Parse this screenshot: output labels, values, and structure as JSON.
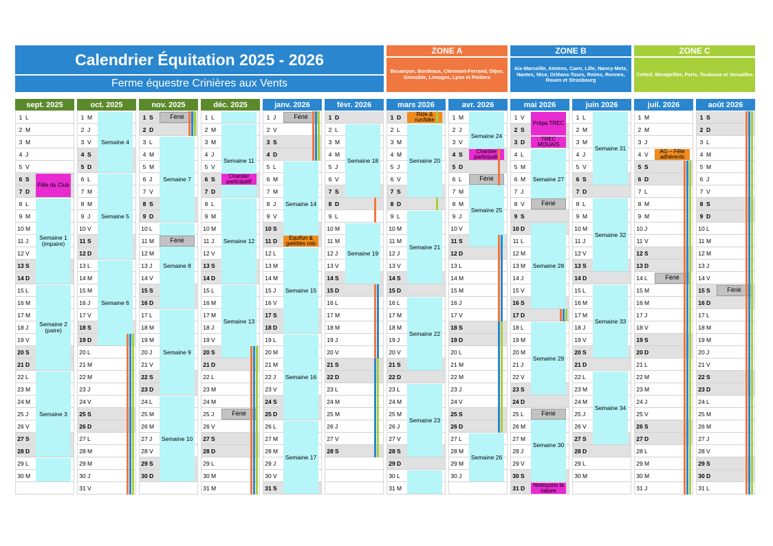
{
  "title": "Calendrier Équitation 2025 - 2026",
  "subtitle": "Ferme équestre Crinières aux Vents",
  "colors": {
    "title_bg": "#2a86cf",
    "zone_a": "#f0773f",
    "zone_b": "#2a86cf",
    "zone_c": "#a7cf3a",
    "month_green": "#5b8a2c",
    "month_blue": "#2a86cf",
    "week_fill": "#b6f5f8",
    "ferie": "#c2c2c2",
    "event_pink": "#e82bd0",
    "event_orange": "#ef8b1e"
  },
  "zones": [
    {
      "name": "ZONE A",
      "cities": "Besançon, Bordeaux, Clermont-Ferrand, Dijon, Grenoble, Limoges, Lyon et Poitiers",
      "color": "#f0773f"
    },
    {
      "name": "ZONE B",
      "cities": "Aix-Marseille, Amiens, Caen, Lille, Nancy-Metz, Nantes, Nice, Orléans-Tours, Reims, Rennes, Rouen et Strasbourg",
      "color": "#2a86cf"
    },
    {
      "name": "ZONE C",
      "cities": "Créteil, Montpellier, Paris, Toulouse et Versailles",
      "color": "#a7cf3a"
    }
  ],
  "months": [
    {
      "name": "sept. 2025",
      "days": 30,
      "first": "L",
      "color": "#5b8a2c",
      "events": [
        {
          "type": "week",
          "label": "Semaine 1 (impaire)",
          "from": 8,
          "to": 14
        },
        {
          "type": "week",
          "label": "Semaine 2 (paire)",
          "from": 15,
          "to": 21
        },
        {
          "type": "week",
          "label": "Semaine 3",
          "from": 22,
          "to": 28
        },
        {
          "type": "week",
          "label": "",
          "from": 29,
          "to": 30
        },
        {
          "type": "pink",
          "label": "Fête du Club",
          "from": 6,
          "to": 7
        }
      ],
      "stripes": []
    },
    {
      "name": "oct. 2025",
      "days": 31,
      "first": "M",
      "color": "#5b8a2c",
      "events": [
        {
          "type": "week",
          "label": "Semaine 4",
          "from": 1,
          "to": 5
        },
        {
          "type": "week",
          "label": "Semaine 5",
          "from": 6,
          "to": 12
        },
        {
          "type": "week",
          "label": "Semaine 6",
          "from": 13,
          "to": 19
        }
      ],
      "stripes": [
        {
          "from": 19,
          "to": 31,
          "zones": [
            "A",
            "B",
            "C"
          ]
        }
      ]
    },
    {
      "name": "nov. 2025",
      "days": 30,
      "first": "S",
      "color": "#5b8a2c",
      "events": [
        {
          "type": "week",
          "label": "Semaine 7",
          "from": 3,
          "to": 9
        },
        {
          "type": "week",
          "label": "Semaine 8",
          "from": 10,
          "to": 16
        },
        {
          "type": "week",
          "label": "Semaine 9",
          "from": 17,
          "to": 23
        },
        {
          "type": "week",
          "label": "Semaine 10",
          "from": 24,
          "to": 30
        },
        {
          "type": "ferie",
          "label": "Férié",
          "from": 1,
          "to": 1
        },
        {
          "type": "ferie",
          "label": "Férié",
          "from": 11,
          "to": 11
        }
      ],
      "stripes": [
        {
          "from": 1,
          "to": 2,
          "zones": [
            "A",
            "B",
            "C"
          ]
        }
      ]
    },
    {
      "name": "déc. 2025",
      "days": 31,
      "first": "L",
      "color": "#5b8a2c",
      "events": [
        {
          "type": "week",
          "label": "",
          "from": 1,
          "to": 1
        },
        {
          "type": "week",
          "label": "Semaine 11",
          "from": 2,
          "to": 7
        },
        {
          "type": "week",
          "label": "Semaine 12",
          "from": 8,
          "to": 14
        },
        {
          "type": "week",
          "label": "Semaine 13",
          "from": 15,
          "to": 20
        },
        {
          "type": "pink",
          "label": "Chantier participatif",
          "from": 6,
          "to": 6
        },
        {
          "type": "ferie",
          "label": "Férié",
          "from": 25,
          "to": 25
        }
      ],
      "stripes": [
        {
          "from": 20,
          "to": 31,
          "zones": [
            "A",
            "B",
            "C"
          ]
        }
      ]
    },
    {
      "name": "janv. 2026",
      "days": 31,
      "first": "J",
      "color": "#2a86cf",
      "events": [
        {
          "type": "week",
          "label": "Semaine 14",
          "from": 5,
          "to": 11
        },
        {
          "type": "week",
          "label": "Semaine 15",
          "from": 12,
          "to": 18
        },
        {
          "type": "week",
          "label": "Semaine 16",
          "from": 19,
          "to": 25
        },
        {
          "type": "week",
          "label": "Semaine 17",
          "from": 26,
          "to": 31
        },
        {
          "type": "ferie",
          "label": "Férié",
          "from": 1,
          "to": 1
        },
        {
          "type": "orange",
          "label": "Equifun & galettes rois",
          "from": 11,
          "to": 11
        }
      ],
      "stripes": [
        {
          "from": 1,
          "to": 4,
          "zones": [
            "A",
            "B",
            "C"
          ]
        }
      ]
    },
    {
      "name": "févr. 2026",
      "days": 28,
      "first": "D",
      "color": "#2a86cf",
      "events": [
        {
          "type": "week",
          "label": "Semaine 18",
          "from": 2,
          "to": 7
        },
        {
          "type": "week",
          "label": "Semaine 19",
          "from": 10,
          "to": 14
        }
      ],
      "stripes": [
        {
          "from": 8,
          "to": 9,
          "zones": [
            "A"
          ]
        },
        {
          "from": 15,
          "to": 22,
          "zones": [
            "A",
            "B"
          ]
        },
        {
          "from": 21,
          "to": 28,
          "zones": [
            "B",
            "C"
          ]
        }
      ]
    },
    {
      "name": "mars 2026",
      "days": 31,
      "first": "D",
      "color": "#2a86cf",
      "events": [
        {
          "type": "week",
          "label": "Semaine 20",
          "from": 2,
          "to": 7
        },
        {
          "type": "week",
          "label": "Semaine 21",
          "from": 9,
          "to": 14
        },
        {
          "type": "week",
          "label": "Semaine 22",
          "from": 16,
          "to": 21
        },
        {
          "type": "week",
          "label": "Semaine 23",
          "from": 23,
          "to": 28
        },
        {
          "type": "week",
          "label": "",
          "from": 30,
          "to": 31
        },
        {
          "type": "orange",
          "label": "Ride & run/bike",
          "from": 1,
          "to": 1
        }
      ],
      "stripes": [
        {
          "from": 1,
          "to": 1,
          "zones": [
            "C"
          ]
        },
        {
          "from": 8,
          "to": 8,
          "zones": [
            "C"
          ]
        }
      ]
    },
    {
      "name": "avr. 2026",
      "days": 30,
      "first": "M",
      "color": "#2a86cf",
      "events": [
        {
          "type": "week",
          "label": "Semaine 24",
          "from": 1,
          "to": 4
        },
        {
          "type": "week",
          "label": "Semaine 25",
          "from": 6,
          "to": 11
        },
        {
          "type": "week",
          "label": "Semaine 26",
          "from": 27,
          "to": 30
        },
        {
          "type": "pink",
          "label": "Chantier participatif",
          "from": 4,
          "to": 4
        },
        {
          "type": "ferie",
          "label": "Férié",
          "from": 6,
          "to": 6
        }
      ],
      "stripes": [
        {
          "from": 4,
          "to": 6,
          "zones": [
            "A"
          ]
        },
        {
          "from": 11,
          "to": 18,
          "zones": [
            "A",
            "B"
          ]
        },
        {
          "from": 18,
          "to": 26,
          "zones": [
            "B",
            "C"
          ]
        }
      ]
    },
    {
      "name": "mai 2026",
      "days": 31,
      "first": "V",
      "color": "#2a86cf",
      "events": [
        {
          "type": "week",
          "label": "Semaine 27",
          "from": 4,
          "to": 8
        },
        {
          "type": "week",
          "label": "Semaine 28",
          "from": 10,
          "to": 16
        },
        {
          "type": "week",
          "label": "Semaine 29",
          "from": 18,
          "to": 23
        },
        {
          "type": "week",
          "label": "Semaine 30",
          "from": 25,
          "to": 30
        },
        {
          "type": "pink",
          "label": "Prépa TREC",
          "from": 1,
          "to": 2
        },
        {
          "type": "pink",
          "label": "TREC MOUAIS",
          "from": 3,
          "to": 3
        },
        {
          "type": "ferie",
          "label": "Férié",
          "from": 8,
          "to": 8
        },
        {
          "type": "ferie",
          "label": "Férié",
          "from": 25,
          "to": 25
        },
        {
          "type": "pink",
          "label": "Nettoyons la nature",
          "from": 31,
          "to": 31
        }
      ],
      "stripes": [
        {
          "from": 17,
          "to": 17,
          "zones": [
            "A",
            "B",
            "C"
          ]
        }
      ]
    },
    {
      "name": "juin 2026",
      "days": 30,
      "first": "L",
      "color": "#2a86cf",
      "events": [
        {
          "type": "week",
          "label": "Semaine 31",
          "from": 1,
          "to": 6
        },
        {
          "type": "week",
          "label": "Semaine 32",
          "from": 8,
          "to": 13
        },
        {
          "type": "week",
          "label": "Semaine 33",
          "from": 15,
          "to": 20
        },
        {
          "type": "week",
          "label": "Semaine 34",
          "from": 22,
          "to": 27
        }
      ],
      "stripes": []
    },
    {
      "name": "juil. 2026",
      "days": 31,
      "first": "M",
      "color": "#2a86cf",
      "events": [
        {
          "type": "orange",
          "label": "AG – Fête adhérents",
          "from": 4,
          "to": 4
        },
        {
          "type": "ferie",
          "label": "Férié",
          "from": 14,
          "to": 14
        }
      ],
      "stripes": [
        {
          "from": 5,
          "to": 31,
          "zones": [
            "A",
            "B",
            "C"
          ]
        }
      ]
    },
    {
      "name": "août 2026",
      "days": 31,
      "first": "S",
      "color": "#2a86cf",
      "events": [
        {
          "type": "ferie",
          "label": "Férié",
          "from": 15,
          "to": 15
        }
      ],
      "stripes": [
        {
          "from": 1,
          "to": 31,
          "zones": [
            "A",
            "B",
            "C"
          ]
        }
      ]
    }
  ]
}
